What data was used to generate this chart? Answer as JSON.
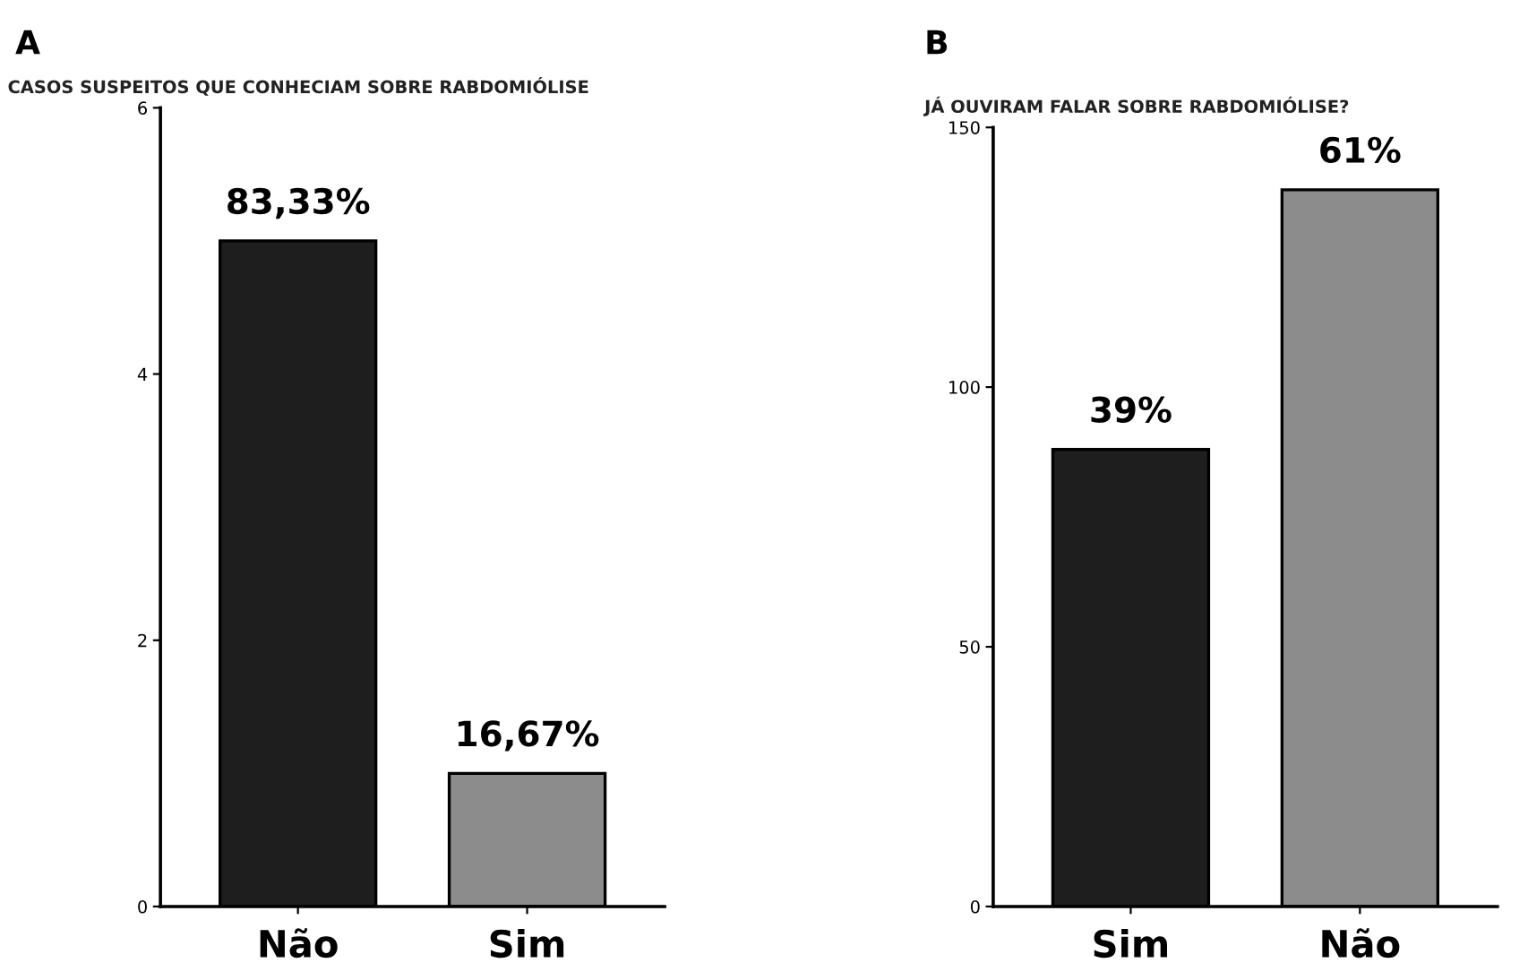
{
  "chart_data": [
    {
      "type": "bar",
      "title": "CASOS SUSPEITOS QUE CONHECIAM SOBRE RABDOMIÓLISE",
      "annotations": [
        "A",
        {
          "text": "83,33%",
          "x": "Não",
          "y": 5
        },
        {
          "text": "16,67%",
          "x": "Sim",
          "y": 1
        }
      ],
      "categories": [
        "Não",
        "Sim"
      ],
      "values": [
        5,
        1
      ],
      "colors": [
        "#1e1e1e",
        "#8c8c8c"
      ],
      "ylim": [
        0,
        6
      ],
      "yticks": [
        0,
        2,
        4,
        6
      ],
      "grid": false,
      "legend": false
    },
    {
      "type": "bar",
      "title": "JÁ OUVIRAM FALAR SOBRE RABDOMIÓLISE?",
      "annotations": [
        "B",
        {
          "text": "39%",
          "x": "Sim",
          "y": 88
        },
        {
          "text": "61%",
          "x": "Não",
          "y": 138
        }
      ],
      "categories": [
        "Sim",
        "Não"
      ],
      "values": [
        88,
        138
      ],
      "colors": [
        "#1e1e1e",
        "#8c8c8c"
      ],
      "ylim": [
        0,
        150
      ],
      "yticks": [
        0,
        50,
        100,
        150
      ],
      "grid": false,
      "legend": false
    }
  ]
}
